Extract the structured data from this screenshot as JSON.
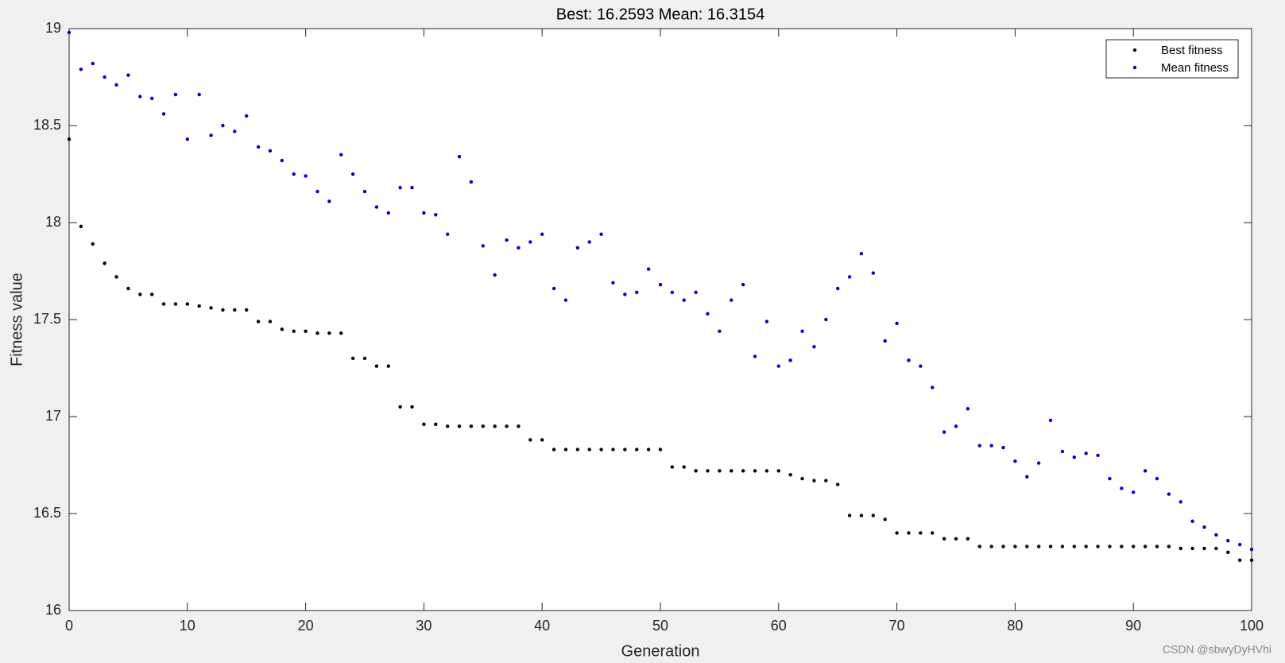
{
  "chart_data": {
    "type": "scatter",
    "title": "Best: 16.2593 Mean: 16.3154",
    "x_label": "Generation",
    "y_label": "Fitness value",
    "x": [
      0,
      1,
      2,
      3,
      4,
      5,
      6,
      7,
      8,
      9,
      10,
      11,
      12,
      13,
      14,
      15,
      16,
      17,
      18,
      19,
      20,
      21,
      22,
      23,
      24,
      25,
      26,
      27,
      28,
      29,
      30,
      31,
      32,
      33,
      34,
      35,
      36,
      37,
      38,
      39,
      40,
      41,
      42,
      43,
      44,
      45,
      46,
      47,
      48,
      49,
      50,
      51,
      52,
      53,
      54,
      55,
      56,
      57,
      58,
      59,
      60,
      61,
      62,
      63,
      64,
      65,
      66,
      67,
      68,
      69,
      70,
      71,
      72,
      73,
      74,
      75,
      76,
      77,
      78,
      79,
      80,
      81,
      82,
      83,
      84,
      85,
      86,
      87,
      88,
      89,
      90,
      91,
      92,
      93,
      94,
      95,
      96,
      97,
      98,
      99,
      100
    ],
    "series": [
      {
        "name": "Best fitness",
        "color": "#000000",
        "values": [
          18.43,
          17.98,
          17.89,
          17.79,
          17.72,
          17.66,
          17.63,
          17.63,
          17.58,
          17.58,
          17.58,
          17.57,
          17.56,
          17.55,
          17.55,
          17.55,
          17.49,
          17.49,
          17.45,
          17.44,
          17.44,
          17.43,
          17.43,
          17.43,
          17.3,
          17.3,
          17.26,
          17.26,
          17.05,
          17.05,
          16.96,
          16.96,
          16.95,
          16.95,
          16.95,
          16.95,
          16.95,
          16.95,
          16.95,
          16.88,
          16.88,
          16.83,
          16.83,
          16.83,
          16.83,
          16.83,
          16.83,
          16.83,
          16.83,
          16.83,
          16.83,
          16.74,
          16.74,
          16.72,
          16.72,
          16.72,
          16.72,
          16.72,
          16.72,
          16.72,
          16.72,
          16.7,
          16.68,
          16.67,
          16.67,
          16.65,
          16.49,
          16.49,
          16.49,
          16.47,
          16.4,
          16.4,
          16.4,
          16.4,
          16.37,
          16.37,
          16.37,
          16.33,
          16.33,
          16.33,
          16.33,
          16.33,
          16.33,
          16.33,
          16.33,
          16.33,
          16.33,
          16.33,
          16.33,
          16.33,
          16.33,
          16.33,
          16.33,
          16.33,
          16.32,
          16.32,
          16.32,
          16.32,
          16.3,
          16.2593,
          16.2593
        ]
      },
      {
        "name": "Mean fitness",
        "color": "#0000c8",
        "values": [
          18.98,
          18.79,
          18.82,
          18.75,
          18.71,
          18.76,
          18.65,
          18.64,
          18.56,
          18.66,
          18.43,
          18.66,
          18.45,
          18.5,
          18.47,
          18.55,
          18.39,
          18.37,
          18.32,
          18.25,
          18.24,
          18.16,
          18.11,
          18.35,
          18.25,
          18.16,
          18.08,
          18.05,
          18.18,
          18.18,
          18.05,
          18.04,
          17.94,
          18.34,
          18.21,
          17.88,
          17.73,
          17.91,
          17.87,
          17.9,
          17.94,
          17.66,
          17.6,
          17.87,
          17.9,
          17.94,
          17.69,
          17.63,
          17.64,
          17.76,
          17.68,
          17.64,
          17.6,
          17.64,
          17.53,
          17.44,
          17.6,
          17.68,
          17.31,
          17.49,
          17.26,
          17.29,
          17.44,
          17.36,
          17.5,
          17.66,
          17.72,
          17.84,
          17.74,
          17.39,
          17.48,
          17.29,
          17.26,
          17.15,
          16.92,
          16.95,
          17.04,
          16.85,
          16.85,
          16.84,
          16.77,
          16.69,
          16.76,
          16.98,
          16.82,
          16.79,
          16.81,
          16.8,
          16.68,
          16.63,
          16.61,
          16.72,
          16.68,
          16.6,
          16.56,
          16.46,
          16.43,
          16.39,
          16.36,
          16.34,
          16.3154
        ]
      }
    ],
    "xlim": [
      0,
      100
    ],
    "xticks": [
      0,
      10,
      20,
      30,
      40,
      50,
      60,
      70,
      80,
      90,
      100
    ],
    "ylim": [
      16,
      19
    ],
    "yticks": [
      16,
      16.5,
      17,
      17.5,
      18,
      18.5,
      19
    ],
    "grid": false,
    "legend": "upper right",
    "watermark": "CSDN @sbwyDyHVhi"
  }
}
